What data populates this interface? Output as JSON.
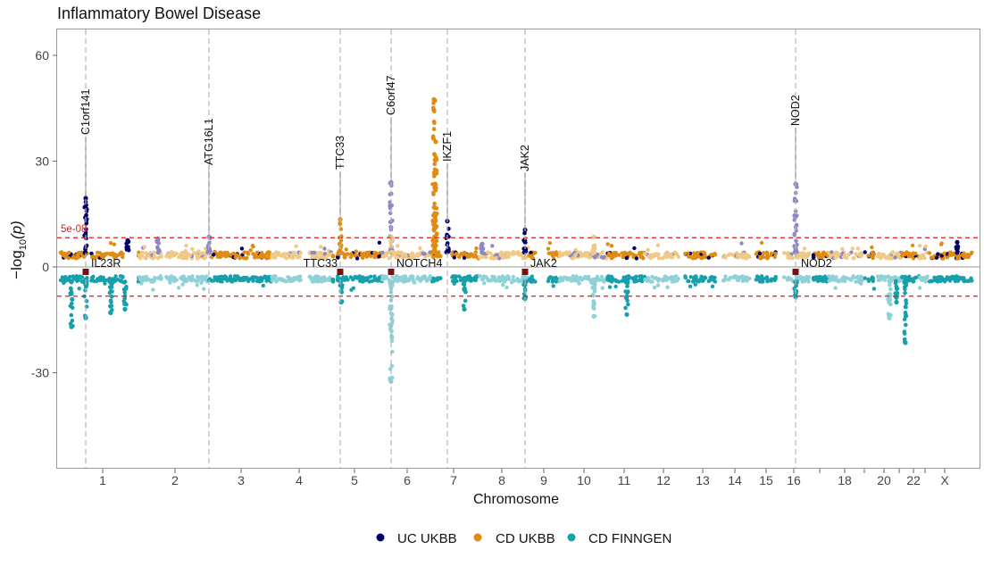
{
  "chart_data": {
    "type": "scatter",
    "subtype": "miami-plot",
    "title": "Inflammatory Bowel Disease",
    "xlabel": "Chromosome",
    "ylabel_main": "−log",
    "ylabel_sub": "10",
    "ylabel_tail": "(p)",
    "ylim": [
      -55,
      67
    ],
    "yticks": [
      60,
      30,
      0,
      -30
    ],
    "ytick_labels": [
      "60",
      "30",
      "0",
      "-30"
    ],
    "x_tick_labels": [
      "1",
      "2",
      "3",
      "4",
      "5",
      "6",
      "7",
      "8",
      "9",
      "10",
      "11",
      "12",
      "13",
      "14",
      "15",
      "16",
      "18",
      "20",
      "22",
      "X"
    ],
    "threshold_label": "5e-08",
    "threshold_values": [
      8.3,
      -8.3
    ],
    "threshold_color": "#e41a1c",
    "colors": {
      "uc_ukbb_dark": "#000066",
      "uc_ukbb_light": "#8c88c3",
      "cd_ukbb_dark": "#e08b12",
      "cd_ukbb_light": "#f0c986",
      "cd_finngen_dark": "#17a0ab",
      "cd_finngen_light": "#90d1d8",
      "marker": "#7a1010"
    },
    "legend": {
      "position": "bottom",
      "items": [
        {
          "label": "UC UKBB",
          "color": "#000066"
        },
        {
          "label": "CD UKBB",
          "color": "#e08b12"
        },
        {
          "label": "CD FINNGEN",
          "color": "#17a0ab"
        }
      ]
    },
    "top_annotations": [
      {
        "label": "C1orf141",
        "peak": 19.5
      },
      {
        "label": "ATG16L1",
        "peak": 8.5
      },
      {
        "label": "TTC33",
        "peak": 13.5
      },
      {
        "label": "C6orf47",
        "peak": 24
      },
      {
        "label": "IKZF1",
        "peak": 13
      },
      {
        "label": "JAK2",
        "peak": 10.5
      },
      {
        "label": "NOD2",
        "peak": 23.5
      }
    ],
    "bottom_annotations": [
      {
        "label": "IL23R",
        "side": "right"
      },
      {
        "label": "TTC33",
        "side": "left"
      },
      {
        "label": "NOTCH4",
        "side": "right"
      },
      {
        "label": "JAK2",
        "side": "right"
      },
      {
        "label": "NOD2",
        "side": "right"
      }
    ],
    "series": [
      {
        "name": "UC UKBB",
        "peaks_top": [
          19.5,
          8.5,
          13.5,
          24,
          13,
          10.5,
          23.5
        ]
      },
      {
        "name": "CD UKBB",
        "peaks_top": [
          47.5,
          35.5,
          13.5,
          11,
          8.5
        ]
      },
      {
        "name": "CD FINNGEN",
        "peaks_bottom": [
          -17,
          -32.5,
          -21.5,
          -14
        ]
      }
    ]
  }
}
